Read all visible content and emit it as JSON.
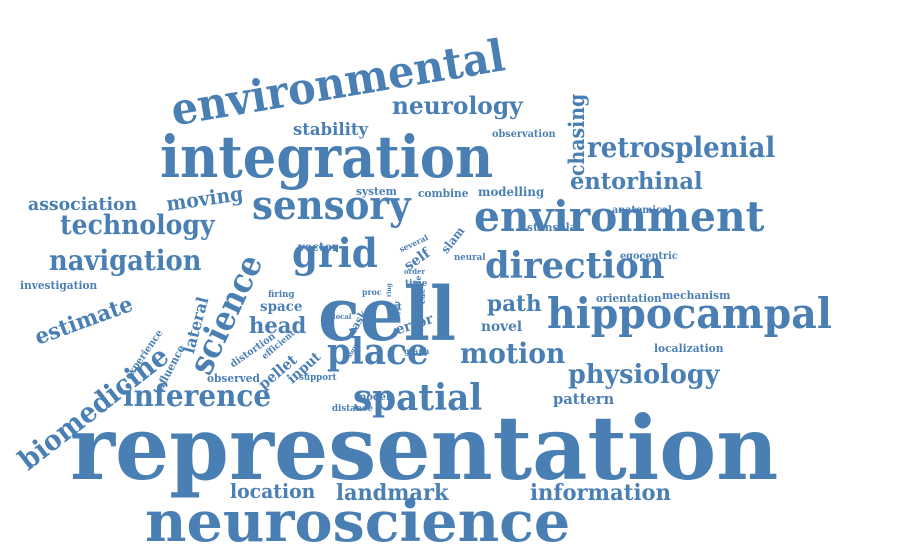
{
  "cloud": {
    "color": "#4a7fb3",
    "words": [
      {
        "text": "representation",
        "weight": 10
      },
      {
        "text": "neuroscience",
        "weight": 7.6
      },
      {
        "text": "cell",
        "weight": 7.4
      },
      {
        "text": "integration",
        "weight": 7
      },
      {
        "text": "environmental",
        "weight": 5.6
      },
      {
        "text": "environment",
        "weight": 5.1
      },
      {
        "text": "sensory",
        "weight": 4.9
      },
      {
        "text": "hippocampal",
        "weight": 5
      },
      {
        "text": "direction",
        "weight": 4.4
      },
      {
        "text": "grid",
        "weight": 4.6
      },
      {
        "text": "place",
        "weight": 4.3
      },
      {
        "text": "spatial",
        "weight": 4.3
      },
      {
        "text": "science",
        "weight": 4.1
      },
      {
        "text": "biomedicine",
        "weight": 3.9
      },
      {
        "text": "inference",
        "weight": 3.4
      },
      {
        "text": "motion",
        "weight": 3.2
      },
      {
        "text": "navigation",
        "weight": 3.2
      },
      {
        "text": "technology",
        "weight": 3.1
      },
      {
        "text": "retrosplenial",
        "weight": 3.1
      },
      {
        "text": "physiology",
        "weight": 3
      },
      {
        "text": "neurology",
        "weight": 2.8
      },
      {
        "text": "entorhinal",
        "weight": 2.6
      },
      {
        "text": "landmark",
        "weight": 2.5
      },
      {
        "text": "information",
        "weight": 2.5
      },
      {
        "text": "location",
        "weight": 2.4
      },
      {
        "text": "estimate",
        "weight": 2.6
      },
      {
        "text": "head",
        "weight": 2.5
      },
      {
        "text": "path",
        "weight": 2.5
      },
      {
        "text": "chasing",
        "weight": 2.4
      },
      {
        "text": "moving",
        "weight": 2.3
      },
      {
        "text": "association",
        "weight": 2.1
      },
      {
        "text": "stability",
        "weight": 2
      },
      {
        "text": "lateral",
        "weight": 2
      },
      {
        "text": "pattern",
        "weight": 1.8
      },
      {
        "text": "pellet",
        "weight": 1.8
      },
      {
        "text": "input",
        "weight": 1.6
      },
      {
        "text": "novel",
        "weight": 1.6
      },
      {
        "text": "error",
        "weight": 1.6
      },
      {
        "text": "space",
        "weight": 1.6
      },
      {
        "text": "self",
        "weight": 1.6
      },
      {
        "text": "modelling",
        "weight": 1.4
      },
      {
        "text": "influence",
        "weight": 1.3
      },
      {
        "text": "vector",
        "weight": 1.3
      },
      {
        "text": "stensola",
        "weight": 1.3
      },
      {
        "text": "mechanism",
        "weight": 1.2
      },
      {
        "text": "system",
        "weight": 1.2
      },
      {
        "text": "combine",
        "weight": 1.2
      },
      {
        "text": "observed",
        "weight": 1.2
      },
      {
        "text": "localization",
        "weight": 1.2
      },
      {
        "text": "distortion",
        "weight": 1.1
      },
      {
        "text": "investigation",
        "weight": 1.1
      },
      {
        "text": "orientation",
        "weight": 1.1
      },
      {
        "text": "egocentric",
        "weight": 1.1
      },
      {
        "text": "slam",
        "weight": 1.2
      },
      {
        "text": "experience",
        "weight": 1.1
      },
      {
        "text": "observation",
        "weight": 1.1
      },
      {
        "text": "anatomical",
        "weight": 1
      },
      {
        "text": "task",
        "weight": 1.1
      },
      {
        "text": "neural",
        "weight": 1
      },
      {
        "text": "rat",
        "weight": 1
      },
      {
        "text": "model",
        "weight": 1
      },
      {
        "text": "efficient",
        "weight": 0.9
      },
      {
        "text": "firing",
        "weight": 0.9
      },
      {
        "text": "time",
        "weight": 0.9
      },
      {
        "text": "distance",
        "weight": 0.9
      },
      {
        "text": "support",
        "weight": 0.9
      },
      {
        "text": "several",
        "weight": 0.8
      },
      {
        "text": "graph",
        "weight": 0.7
      },
      {
        "text": "local",
        "weight": 0.7
      },
      {
        "text": "life",
        "weight": 0.8
      },
      {
        "text": "proc",
        "weight": 0.7
      },
      {
        "text": "order",
        "weight": 0.7
      },
      {
        "text": "cue",
        "weight": 0.7
      },
      {
        "text": "ring",
        "weight": 0.6
      },
      {
        "text": "signal",
        "weight": 0.6
      },
      {
        "text": "jour",
        "weight": 0.6
      }
    ]
  }
}
